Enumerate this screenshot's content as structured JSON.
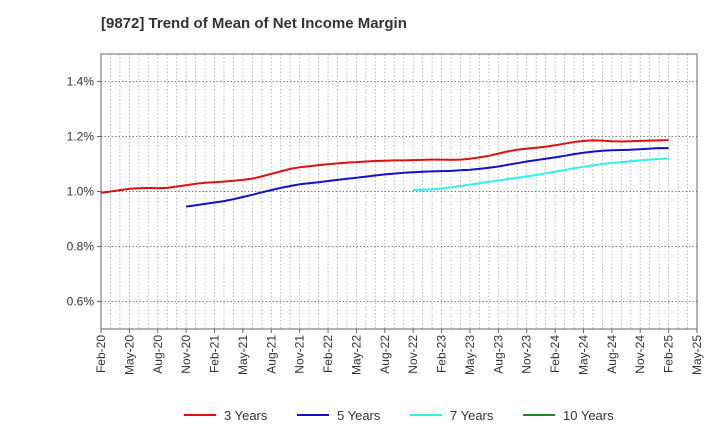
{
  "chart_data": {
    "type": "line",
    "title": "[9872]  Trend of Mean of Net Income Margin",
    "xlabel": "",
    "ylabel": "",
    "x_tick_labels": [
      "Feb-20",
      "May-20",
      "Aug-20",
      "Nov-20",
      "Feb-21",
      "May-21",
      "Aug-21",
      "Nov-21",
      "Feb-22",
      "May-22",
      "Aug-22",
      "Nov-22",
      "Feb-23",
      "May-23",
      "Aug-23",
      "Nov-23",
      "Feb-24",
      "May-24",
      "Aug-24",
      "Nov-24",
      "Feb-25",
      "May-25"
    ],
    "y_tick_labels": [
      "0.6%",
      "0.8%",
      "1.0%",
      "1.2%",
      "1.4%"
    ],
    "y_ticks": [
      0.6,
      0.8,
      1.0,
      1.2,
      1.4
    ],
    "ylim": [
      0.5,
      1.5
    ],
    "y_unit": "%",
    "grid": true,
    "legend_position": "bottom",
    "series": [
      {
        "name": "3 Years",
        "color": "#dd1111",
        "x": [
          "Feb-20",
          "Mar-20",
          "Apr-20",
          "May-20",
          "Jun-20",
          "Jul-20",
          "Aug-20",
          "Sep-20",
          "Oct-20",
          "Nov-20",
          "Dec-20",
          "Jan-21",
          "Feb-21",
          "Mar-21",
          "Apr-21",
          "May-21",
          "Jun-21",
          "Jul-21",
          "Aug-21",
          "Sep-21",
          "Oct-21",
          "Nov-21",
          "Dec-21",
          "Jan-22",
          "Feb-22",
          "Mar-22",
          "Apr-22",
          "May-22",
          "Jun-22",
          "Jul-22",
          "Aug-22",
          "Sep-22",
          "Oct-22",
          "Nov-22",
          "Dec-22",
          "Jan-23",
          "Feb-23",
          "Mar-23",
          "Apr-23",
          "May-23",
          "Jun-23",
          "Jul-23",
          "Aug-23",
          "Sep-23",
          "Oct-23",
          "Nov-23",
          "Dec-23",
          "Jan-24",
          "Feb-24",
          "Mar-24",
          "Apr-24",
          "May-24",
          "Jun-24",
          "Jul-24",
          "Aug-24",
          "Sep-24",
          "Oct-24",
          "Nov-24",
          "Dec-24",
          "Jan-25",
          "Feb-25"
        ],
        "values": [
          0.995,
          1.0,
          1.005,
          1.01,
          1.012,
          1.013,
          1.012,
          1.013,
          1.018,
          1.023,
          1.028,
          1.032,
          1.034,
          1.036,
          1.039,
          1.042,
          1.047,
          1.055,
          1.064,
          1.073,
          1.082,
          1.088,
          1.092,
          1.096,
          1.099,
          1.102,
          1.105,
          1.107,
          1.109,
          1.111,
          1.112,
          1.113,
          1.113,
          1.114,
          1.115,
          1.116,
          1.116,
          1.115,
          1.116,
          1.119,
          1.124,
          1.13,
          1.138,
          1.146,
          1.152,
          1.156,
          1.159,
          1.163,
          1.168,
          1.174,
          1.18,
          1.184,
          1.186,
          1.185,
          1.183,
          1.182,
          1.183,
          1.184,
          1.185,
          1.186,
          1.187
        ]
      },
      {
        "name": "5 Years",
        "color": "#1111cc",
        "x": [
          "Nov-20",
          "Dec-20",
          "Jan-21",
          "Feb-21",
          "Mar-21",
          "Apr-21",
          "May-21",
          "Jun-21",
          "Jul-21",
          "Aug-21",
          "Sep-21",
          "Oct-21",
          "Nov-21",
          "Dec-21",
          "Jan-22",
          "Feb-22",
          "Mar-22",
          "Apr-22",
          "May-22",
          "Jun-22",
          "Jul-22",
          "Aug-22",
          "Sep-22",
          "Oct-22",
          "Nov-22",
          "Dec-22",
          "Jan-23",
          "Feb-23",
          "Mar-23",
          "Apr-23",
          "May-23",
          "Jun-23",
          "Jul-23",
          "Aug-23",
          "Sep-23",
          "Oct-23",
          "Nov-23",
          "Dec-23",
          "Jan-24",
          "Feb-24",
          "Mar-24",
          "Apr-24",
          "May-24",
          "Jun-24",
          "Jul-24",
          "Aug-24",
          "Sep-24",
          "Oct-24",
          "Nov-24",
          "Dec-24",
          "Jan-25",
          "Feb-25"
        ],
        "values": [
          0.945,
          0.95,
          0.955,
          0.96,
          0.965,
          0.972,
          0.98,
          0.988,
          0.997,
          1.005,
          1.013,
          1.02,
          1.026,
          1.03,
          1.034,
          1.038,
          1.042,
          1.046,
          1.05,
          1.054,
          1.058,
          1.062,
          1.065,
          1.068,
          1.07,
          1.072,
          1.073,
          1.074,
          1.075,
          1.077,
          1.079,
          1.082,
          1.086,
          1.091,
          1.097,
          1.103,
          1.109,
          1.114,
          1.119,
          1.124,
          1.13,
          1.136,
          1.141,
          1.145,
          1.148,
          1.15,
          1.151,
          1.152,
          1.154,
          1.156,
          1.158,
          1.158
        ]
      },
      {
        "name": "7 Years",
        "color": "#33eeee",
        "x": [
          "Nov-22",
          "Dec-22",
          "Jan-23",
          "Feb-23",
          "Mar-23",
          "Apr-23",
          "May-23",
          "Jun-23",
          "Jul-23",
          "Aug-23",
          "Sep-23",
          "Oct-23",
          "Nov-23",
          "Dec-23",
          "Jan-24",
          "Feb-24",
          "Mar-24",
          "Apr-24",
          "May-24",
          "Jun-24",
          "Jul-24",
          "Aug-24",
          "Sep-24",
          "Oct-24",
          "Nov-24",
          "Dec-24",
          "Jan-25",
          "Feb-25"
        ],
        "values": [
          1.005,
          1.006,
          1.008,
          1.011,
          1.015,
          1.02,
          1.025,
          1.03,
          1.035,
          1.04,
          1.045,
          1.05,
          1.055,
          1.06,
          1.066,
          1.072,
          1.078,
          1.084,
          1.09,
          1.095,
          1.1,
          1.104,
          1.107,
          1.11,
          1.113,
          1.116,
          1.118,
          1.12
        ]
      },
      {
        "name": "10 Years",
        "color": "#228822",
        "x": [],
        "values": []
      }
    ]
  }
}
